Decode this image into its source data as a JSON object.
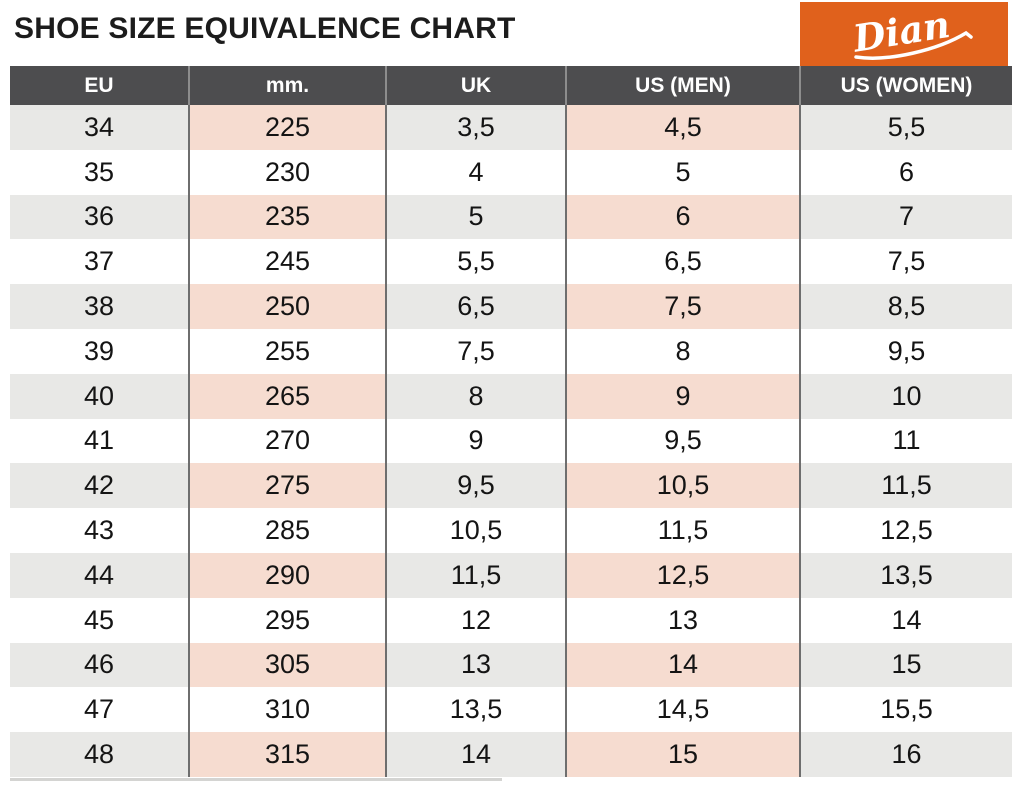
{
  "title": "SHOE SIZE EQUIVALENCE CHART",
  "logo": {
    "text": "Dian",
    "background_color": "#e0611c",
    "text_color": "#ffffff"
  },
  "colors": {
    "header_bg": "#4d4d4f",
    "header_text": "#ffffff",
    "stripe_gray": "#e8e8e6",
    "stripe_pink": "#f6dcd0",
    "row_white": "#ffffff",
    "grid_line": "#6e6e6e",
    "title_text": "#1c1c1c"
  },
  "chart_data": {
    "type": "table",
    "title": "SHOE SIZE EQUIVALENCE CHART",
    "columns": [
      "EU",
      "mm.",
      "UK",
      "US (MEN)",
      "US (WOMEN)"
    ],
    "rows": [
      [
        "34",
        "225",
        "3,5",
        "4,5",
        "5,5"
      ],
      [
        "35",
        "230",
        "4",
        "5",
        "6"
      ],
      [
        "36",
        "235",
        "5",
        "6",
        "7"
      ],
      [
        "37",
        "245",
        "5,5",
        "6,5",
        "7,5"
      ],
      [
        "38",
        "250",
        "6,5",
        "7,5",
        "8,5"
      ],
      [
        "39",
        "255",
        "7,5",
        "8",
        "9,5"
      ],
      [
        "40",
        "265",
        "8",
        "9",
        "10"
      ],
      [
        "41",
        "270",
        "9",
        "9,5",
        "11"
      ],
      [
        "42",
        "275",
        "9,5",
        "10,5",
        "11,5"
      ],
      [
        "43",
        "285",
        "10,5",
        "11,5",
        "12,5"
      ],
      [
        "44",
        "290",
        "11,5",
        "12,5",
        "13,5"
      ],
      [
        "45",
        "295",
        "12",
        "13",
        "14"
      ],
      [
        "46",
        "305",
        "13",
        "14",
        "15"
      ],
      [
        "47",
        "310",
        "13,5",
        "14,5",
        "15,5"
      ],
      [
        "48",
        "315",
        "14",
        "15",
        "16"
      ]
    ]
  }
}
